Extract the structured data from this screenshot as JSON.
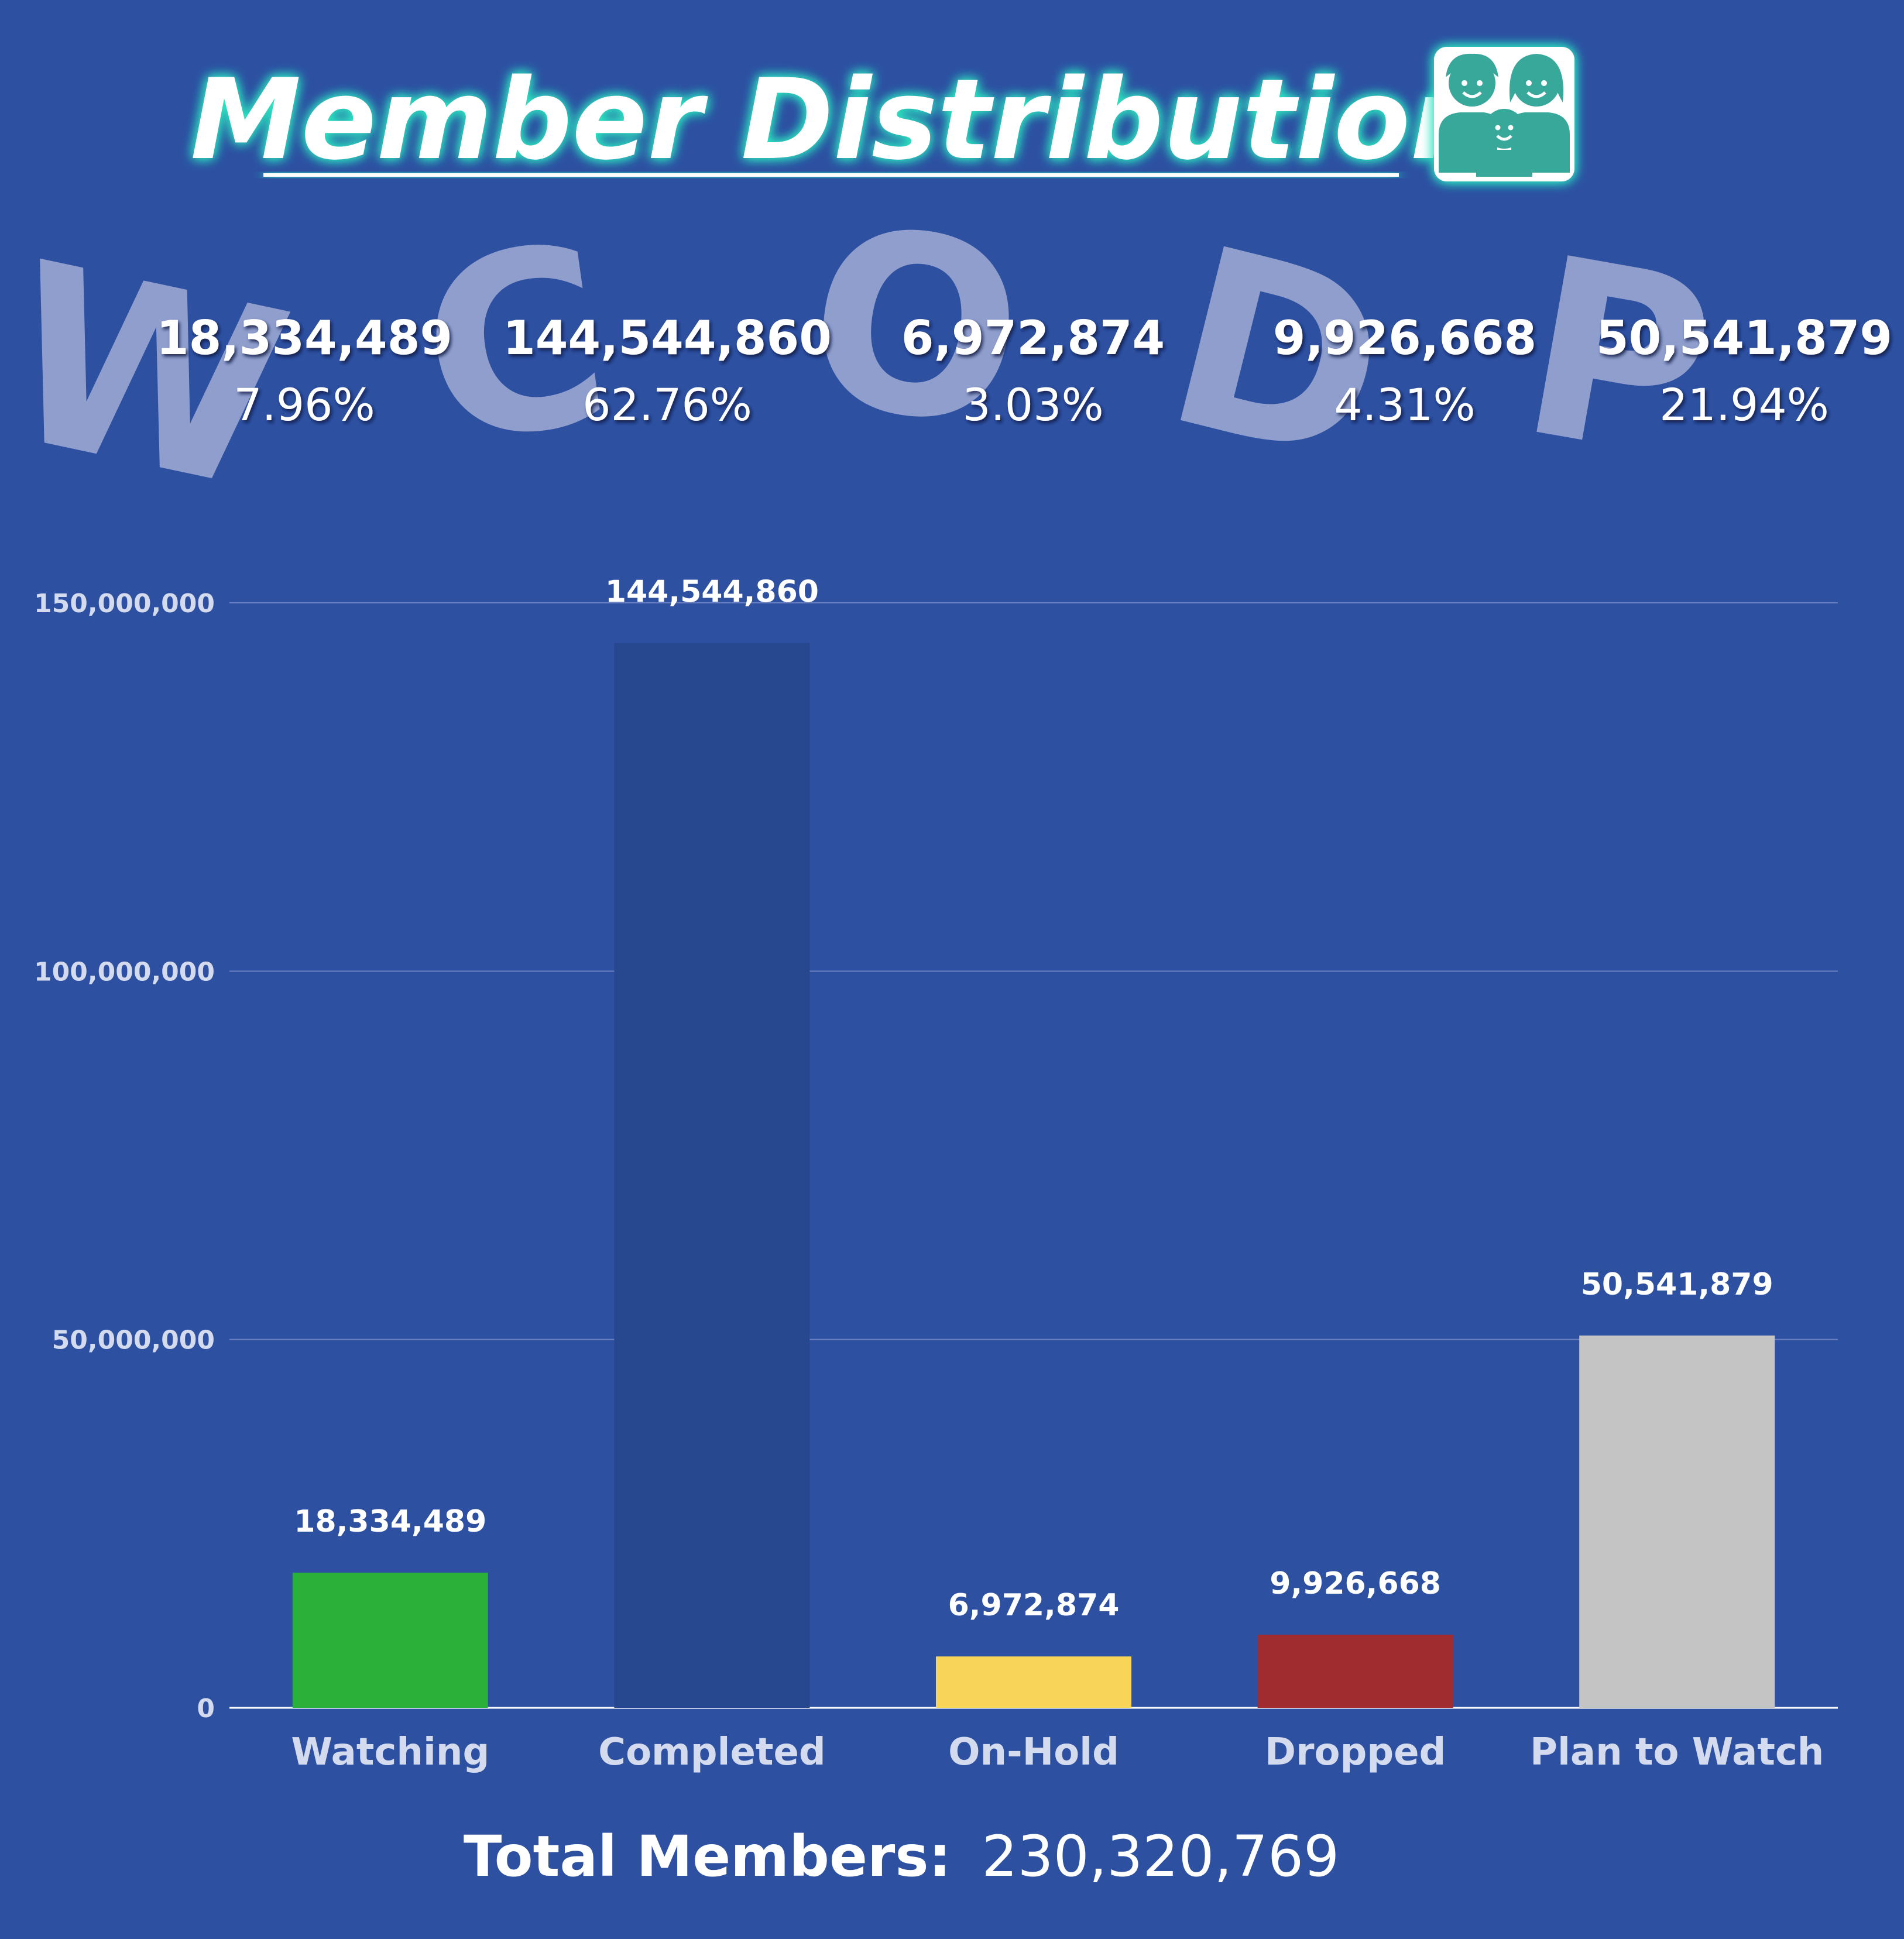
{
  "title": "Member Distribution",
  "title_icon": "family-icon",
  "colors": {
    "background": "#2d50a1",
    "title_glow": "#2ee6c0",
    "icon": "#39a89a",
    "watermark": "#9aa6d2",
    "grid": "#6a80c0",
    "axis_label": "#d4dbef"
  },
  "summary": [
    {
      "letter": "W",
      "count": "18,334,489",
      "percent": "7.96%"
    },
    {
      "letter": "C",
      "count": "144,544,860",
      "percent": "62.76%"
    },
    {
      "letter": "O",
      "count": "6,972,874",
      "percent": "3.03%"
    },
    {
      "letter": "D",
      "count": "9,926,668",
      "percent": "4.31%"
    },
    {
      "letter": "P",
      "count": "50,541,879",
      "percent": "21.94%"
    }
  ],
  "total": {
    "label": "Total Members:",
    "value": "230,320,769"
  },
  "chart_data": {
    "type": "bar",
    "title": "",
    "xlabel": "",
    "ylabel": "",
    "categories": [
      "Watching",
      "Completed",
      "On-Hold",
      "Dropped",
      "Plan to Watch"
    ],
    "values": [
      18334489,
      144544860,
      6972874,
      9926668,
      50541879
    ],
    "value_labels": [
      "18,334,489",
      "144,544,860",
      "6,972,874",
      "9,926,668",
      "50,541,879"
    ],
    "bar_colors": [
      "#2bb03a",
      "#27478f",
      "#f8d458",
      "#a02c30",
      "#c4c4c4"
    ],
    "ylim": [
      0,
      150000000
    ],
    "yticks": [
      0,
      50000000,
      100000000,
      150000000
    ],
    "ytick_labels": [
      "0",
      "50,000,000",
      "100,000,000",
      "150,000,000"
    ],
    "grid": true,
    "legend": "none"
  }
}
